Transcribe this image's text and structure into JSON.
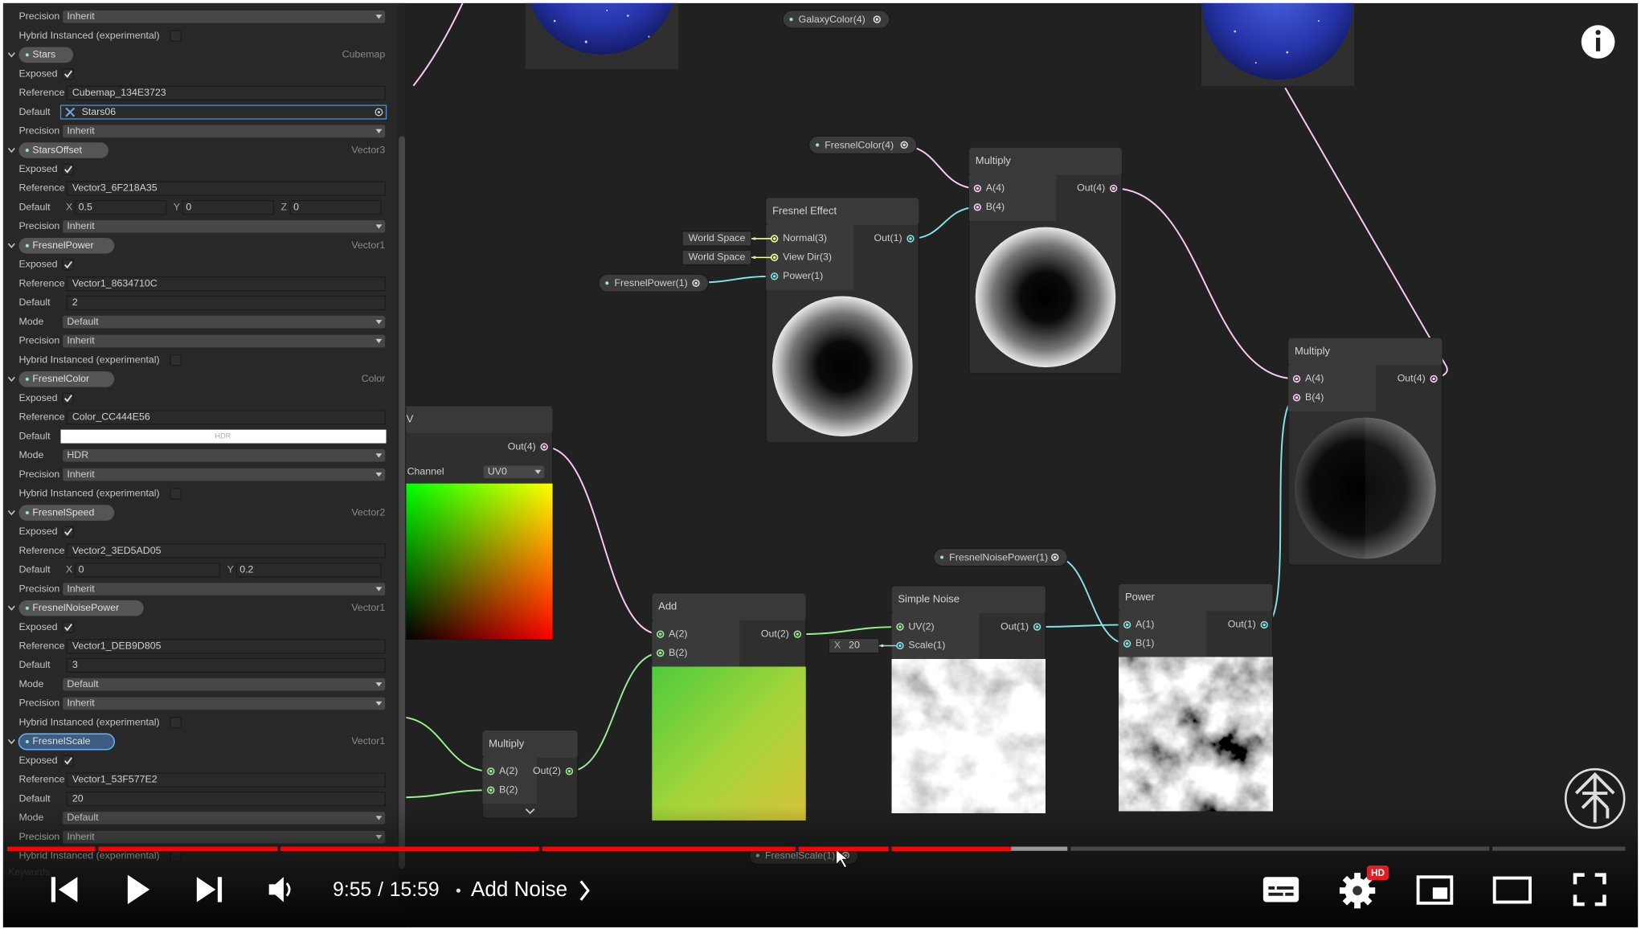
{
  "panel": {
    "rows": [
      {
        "kind": "dropdown",
        "label": "Precision",
        "value": "Inherit"
      },
      {
        "kind": "check",
        "label": "Hybrid Instanced (experimental)",
        "checked": false
      },
      {
        "kind": "header",
        "name": "Stars",
        "type": "Cubemap"
      },
      {
        "kind": "check",
        "label": "Exposed",
        "checked": true
      },
      {
        "kind": "field",
        "label": "Reference",
        "value": "Cubemap_134E3723"
      },
      {
        "kind": "object",
        "label": "Default",
        "value": "Stars06"
      },
      {
        "kind": "dropdown",
        "label": "Precision",
        "value": "Inherit"
      },
      {
        "kind": "header",
        "name": "StarsOffset",
        "type": "Vector3"
      },
      {
        "kind": "check",
        "label": "Exposed",
        "checked": true
      },
      {
        "kind": "field",
        "label": "Reference",
        "value": "Vector3_6F218A35"
      },
      {
        "kind": "vector",
        "label": "Default",
        "components": [
          {
            "axis": "X",
            "value": 0.5
          },
          {
            "axis": "Y",
            "value": 0
          },
          {
            "axis": "Z",
            "value": 0
          }
        ]
      },
      {
        "kind": "dropdown",
        "label": "Precision",
        "value": "Inherit"
      },
      {
        "kind": "header",
        "name": "FresnelPower",
        "type": "Vector1"
      },
      {
        "kind": "check",
        "label": "Exposed",
        "checked": true
      },
      {
        "kind": "field",
        "label": "Reference",
        "value": "Vector1_8634710C"
      },
      {
        "kind": "field",
        "label": "Default",
        "value": 2
      },
      {
        "kind": "dropdown",
        "label": "Mode",
        "value": "Default"
      },
      {
        "kind": "dropdown",
        "label": "Precision",
        "value": "Inherit"
      },
      {
        "kind": "check",
        "label": "Hybrid Instanced (experimental)",
        "checked": false
      },
      {
        "kind": "header",
        "name": "FresnelColor",
        "type": "Color"
      },
      {
        "kind": "check",
        "label": "Exposed",
        "checked": true
      },
      {
        "kind": "field",
        "label": "Reference",
        "value": "Color_CC444E56"
      },
      {
        "kind": "color",
        "label": "Default",
        "value": "HDR"
      },
      {
        "kind": "dropdown",
        "label": "Mode",
        "value": "HDR"
      },
      {
        "kind": "dropdown",
        "label": "Precision",
        "value": "Inherit"
      },
      {
        "kind": "check",
        "label": "Hybrid Instanced (experimental)",
        "checked": false
      },
      {
        "kind": "header",
        "name": "FresnelSpeed",
        "type": "Vector2"
      },
      {
        "kind": "check",
        "label": "Exposed",
        "checked": true
      },
      {
        "kind": "field",
        "label": "Reference",
        "value": "Vector2_3ED5AD05"
      },
      {
        "kind": "vector",
        "label": "Default",
        "components": [
          {
            "axis": "X",
            "value": 0
          },
          {
            "axis": "Y",
            "value": 0.2
          }
        ]
      },
      {
        "kind": "dropdown",
        "label": "Precision",
        "value": "Inherit"
      },
      {
        "kind": "header",
        "name": "FresnelNoisePower",
        "type": "Vector1"
      },
      {
        "kind": "check",
        "label": "Exposed",
        "checked": true
      },
      {
        "kind": "field",
        "label": "Reference",
        "value": "Vector1_DEB9D805"
      },
      {
        "kind": "field",
        "label": "Default",
        "value": 3
      },
      {
        "kind": "dropdown",
        "label": "Mode",
        "value": "Default"
      },
      {
        "kind": "dropdown",
        "label": "Precision",
        "value": "Inherit"
      },
      {
        "kind": "check",
        "label": "Hybrid Instanced (experimental)",
        "checked": false
      },
      {
        "kind": "header",
        "name": "FresnelScale",
        "type": "Vector1",
        "selected": true
      },
      {
        "kind": "check",
        "label": "Exposed",
        "checked": true
      },
      {
        "kind": "field",
        "label": "Reference",
        "value": "Vector1_53F577E2"
      },
      {
        "kind": "field",
        "label": "Default",
        "value": 20
      },
      {
        "kind": "dropdown",
        "label": "Mode",
        "value": "Default"
      },
      {
        "kind": "dropdown",
        "label": "Precision",
        "value": "Inherit"
      },
      {
        "kind": "check",
        "label": "Hybrid Instanced (experimental)",
        "checked": false
      }
    ],
    "footer": "Keywords"
  },
  "graph": {
    "properties": [
      "GalaxyColor(4)",
      "FresnelColor(4)",
      "FresnelPower(1)",
      "FresnelNoisePower(1)",
      "FresnelScale(1)"
    ],
    "nodes": [
      {
        "title": "UV",
        "inputs": [],
        "outputs": [
          "Out(4)"
        ],
        "controls": [
          {
            "label": "Channel",
            "value": "UV0"
          }
        ],
        "preview": "uv"
      },
      {
        "title": "Fresnel Effect",
        "inputs": [
          {
            "name": "Normal(3)",
            "default": "World Space"
          },
          {
            "name": "View Dir(3)",
            "default": "World Space"
          },
          {
            "name": "Power(1)"
          }
        ],
        "outputs": [
          "Out(1)"
        ],
        "preview": "fresnel"
      },
      {
        "title": "Multiply",
        "inputs": [
          {
            "name": "A(4)"
          },
          {
            "name": "B(4)"
          }
        ],
        "outputs": [
          "Out(4)"
        ],
        "preview": "fresnel"
      },
      {
        "title": "Multiply",
        "inputs": [
          {
            "name": "A(4)"
          },
          {
            "name": "B(4)"
          }
        ],
        "outputs": [
          "Out(4)"
        ],
        "preview": "sphere"
      },
      {
        "title": "Add",
        "inputs": [
          {
            "name": "A(2)"
          },
          {
            "name": "B(2)"
          }
        ],
        "outputs": [
          "Out(2)"
        ],
        "preview": "add"
      },
      {
        "title": "Multiply",
        "inputs": [
          {
            "name": "A(2)"
          },
          {
            "name": "B(2)"
          }
        ],
        "outputs": [
          "Out(2)"
        ],
        "collapsed": true
      },
      {
        "title": "Simple Noise",
        "inputs": [
          {
            "name": "UV(2)"
          },
          {
            "name": "Scale(1)",
            "default": {
              "axis": "X",
              "value": 20
            }
          }
        ],
        "outputs": [
          "Out(1)"
        ],
        "preview": "noise"
      },
      {
        "title": "Power",
        "inputs": [
          {
            "name": "A(1)"
          },
          {
            "name": "B(1)"
          }
        ],
        "outputs": [
          "Out(1)"
        ],
        "preview": "noise-dark"
      }
    ]
  },
  "player": {
    "current": "9:55",
    "separator": "/",
    "duration": "15:59",
    "chapter": "Add Noise",
    "hd_badge": "HD"
  }
}
